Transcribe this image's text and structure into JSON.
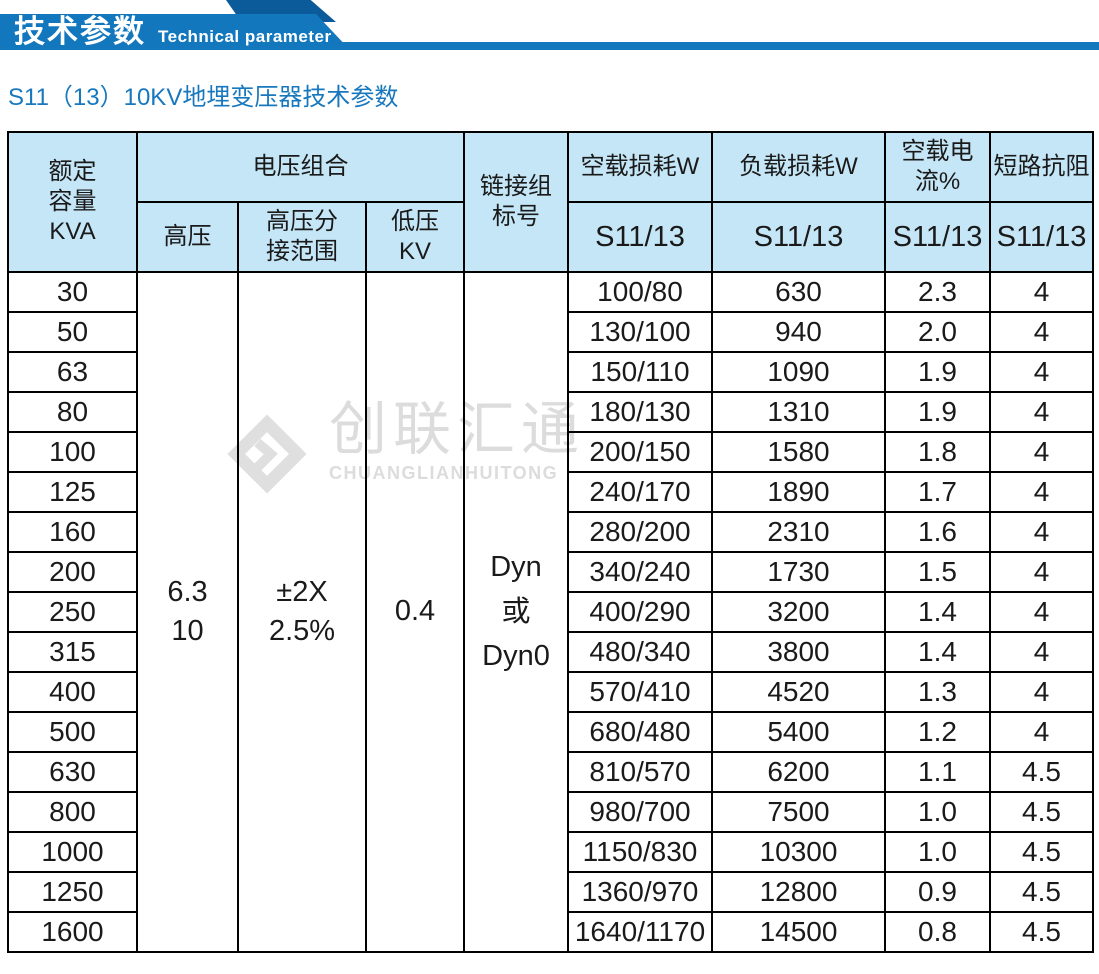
{
  "banner": {
    "title_cn": "技术参数",
    "title_en": "Technical parameter"
  },
  "page": {
    "subtitle": "S11（13）10KV地埋变压器技术参数"
  },
  "watermark": {
    "logo": "diamond-chevron-logo",
    "text_cn": "创联汇通",
    "text_en": "CHUANGLIANHUITONG"
  },
  "colors": {
    "banner_blue": "#1377BD",
    "banner_dark_blue": "#0B5A99",
    "subtitle_blue": "#1878BE",
    "table_header_bg": "#C5E6F6",
    "table_border": "#000000",
    "watermark_gray": "#DCDCDC"
  },
  "table": {
    "headers": {
      "capacity": "额定\n容量\nKVA",
      "voltage_group": "电压组合",
      "hv": "高压",
      "hv_tap_range": "高压分\n接范围",
      "lv": "低压\nKV",
      "connection_group": "链接组\n标号",
      "no_load_loss": "空载损耗W",
      "load_loss": "负载损耗W",
      "no_load_current": "空载电流%",
      "impedance": "短路抗阻"
    },
    "model_label": "S11/13",
    "merged": {
      "hv_value": "6.3\n10",
      "hv_tap_value": "±2X\n2.5%",
      "lv_value": "0.4",
      "connection_value": "Dyn\n或\nDyn0"
    },
    "rows": [
      {
        "capacity": "30",
        "no_load_loss": "100/80",
        "load_loss": "630",
        "no_load_current": "2.3",
        "impedance": "4"
      },
      {
        "capacity": "50",
        "no_load_loss": "130/100",
        "load_loss": "940",
        "no_load_current": "2.0",
        "impedance": "4"
      },
      {
        "capacity": "63",
        "no_load_loss": "150/110",
        "load_loss": "1090",
        "no_load_current": "1.9",
        "impedance": "4"
      },
      {
        "capacity": "80",
        "no_load_loss": "180/130",
        "load_loss": "1310",
        "no_load_current": "1.9",
        "impedance": "4"
      },
      {
        "capacity": "100",
        "no_load_loss": "200/150",
        "load_loss": "1580",
        "no_load_current": "1.8",
        "impedance": "4"
      },
      {
        "capacity": "125",
        "no_load_loss": "240/170",
        "load_loss": "1890",
        "no_load_current": "1.7",
        "impedance": "4"
      },
      {
        "capacity": "160",
        "no_load_loss": "280/200",
        "load_loss": "2310",
        "no_load_current": "1.6",
        "impedance": "4"
      },
      {
        "capacity": "200",
        "no_load_loss": "340/240",
        "load_loss": "1730",
        "no_load_current": "1.5",
        "impedance": "4"
      },
      {
        "capacity": "250",
        "no_load_loss": "400/290",
        "load_loss": "3200",
        "no_load_current": "1.4",
        "impedance": "4"
      },
      {
        "capacity": "315",
        "no_load_loss": "480/340",
        "load_loss": "3800",
        "no_load_current": "1.4",
        "impedance": "4"
      },
      {
        "capacity": "400",
        "no_load_loss": "570/410",
        "load_loss": "4520",
        "no_load_current": "1.3",
        "impedance": "4"
      },
      {
        "capacity": "500",
        "no_load_loss": "680/480",
        "load_loss": "5400",
        "no_load_current": "1.2",
        "impedance": "4"
      },
      {
        "capacity": "630",
        "no_load_loss": "810/570",
        "load_loss": "6200",
        "no_load_current": "1.1",
        "impedance": "4.5"
      },
      {
        "capacity": "800",
        "no_load_loss": "980/700",
        "load_loss": "7500",
        "no_load_current": "1.0",
        "impedance": "4.5"
      },
      {
        "capacity": "1000",
        "no_load_loss": "1150/830",
        "load_loss": "10300",
        "no_load_current": "1.0",
        "impedance": "4.5"
      },
      {
        "capacity": "1250",
        "no_load_loss": "1360/970",
        "load_loss": "12800",
        "no_load_current": "0.9",
        "impedance": "4.5"
      },
      {
        "capacity": "1600",
        "no_load_loss": "1640/1170",
        "load_loss": "14500",
        "no_load_current": "0.8",
        "impedance": "4.5"
      }
    ]
  }
}
